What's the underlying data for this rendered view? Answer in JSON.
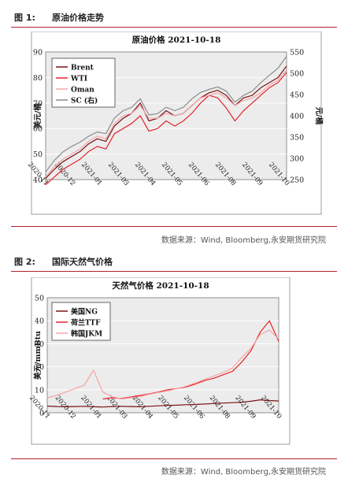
{
  "figures": [
    {
      "num": "图 1:",
      "title": "原油价格走势",
      "source": "数据来源：Wind, Bloomberg,永安期货研究院"
    },
    {
      "num": "图 2:",
      "title": "国际天然气价格",
      "source": "数据来源：Wind, Bloomberg,永安期货研究院"
    }
  ],
  "colors": {
    "accent": "#b0222a"
  },
  "chart_data": [
    {
      "type": "line",
      "title": "原油价格 2021-10-18",
      "ylabel": "美元/桶",
      "y2label": "元/桶",
      "ylim": [
        40,
        90
      ],
      "y2lim": [
        250,
        550
      ],
      "yticks": [
        40,
        50,
        60,
        70,
        80,
        90
      ],
      "y2ticks": [
        250,
        300,
        350,
        400,
        450,
        500,
        550
      ],
      "xticks": [
        "2020-11",
        "2020-12",
        "2021-01",
        "2021-03",
        "2021-04",
        "2021-05",
        "2021-06",
        "2021-08",
        "2021-09",
        "2021-10"
      ],
      "legend_position": "top-left",
      "grid": true,
      "series": [
        {
          "name": "Brent",
          "color": "#7a1214",
          "axis": "left",
          "values": [
            40.5,
            44,
            47,
            49,
            51,
            54,
            56,
            55,
            61,
            64,
            66,
            70,
            63,
            64,
            67,
            65,
            66,
            69,
            72,
            74,
            75,
            73,
            69,
            72,
            73,
            76,
            78,
            80,
            84.5
          ]
        },
        {
          "name": "WTI",
          "color": "#e6232a",
          "axis": "left",
          "values": [
            38,
            41,
            44,
            46,
            48,
            51,
            53,
            52,
            58,
            60,
            62,
            65,
            59,
            60,
            63,
            61,
            63,
            66,
            70,
            73,
            72,
            68,
            63,
            67,
            70,
            73,
            76,
            78,
            82
          ]
        },
        {
          "name": "Oman",
          "color": "#f5a6a6",
          "axis": "left",
          "values": [
            41,
            45,
            48,
            50,
            52,
            55,
            57,
            56,
            62,
            65,
            66,
            69,
            64,
            64,
            66,
            65,
            66,
            69,
            72,
            73,
            74,
            72,
            69,
            71,
            72,
            74,
            77,
            79,
            83
          ]
        },
        {
          "name": "SC (右)",
          "color": "#8c8c8c",
          "axis": "right",
          "values": [
            268,
            295,
            315,
            328,
            338,
            352,
            362,
            358,
            395,
            412,
            420,
            440,
            402,
            405,
            420,
            412,
            420,
            440,
            455,
            462,
            468,
            458,
            432,
            448,
            458,
            478,
            495,
            512,
            540
          ]
        }
      ]
    },
    {
      "type": "line",
      "title": "天然气价格 2021-10-18",
      "ylabel": "美元/mmBtu",
      "ylim": [
        0,
        50
      ],
      "yticks": [
        0,
        10,
        20,
        30,
        40,
        50
      ],
      "xticks": [
        "2020-11",
        "2020-12",
        "2021-01",
        "2021-03",
        "2021-04",
        "2021-05",
        "2021-06",
        "2021-08",
        "2021-09",
        "2021-10"
      ],
      "legend_position": "top-left",
      "grid": true,
      "series": [
        {
          "name": "美国NG",
          "color": "#7a1214",
          "values": [
            2.9,
            2.7,
            2.6,
            2.7,
            2.8,
            2.6,
            2.5,
            2.7,
            2.8,
            2.7,
            2.6,
            2.8,
            3.0,
            3.2,
            3.3,
            3.5,
            3.6,
            3.8,
            4.0,
            4.2,
            4.4,
            4.6,
            5.0,
            5.6,
            5.3,
            5.1
          ]
        },
        {
          "name": "荷兰TTF",
          "color": "#e6232a",
          "values": [
            null,
            null,
            null,
            null,
            null,
            null,
            6.0,
            6.5,
            6.2,
            6.8,
            7.5,
            8.2,
            9.0,
            10.0,
            10.5,
            11.2,
            12.5,
            14.0,
            15.0,
            16.5,
            18.0,
            22.0,
            27.0,
            35.0,
            40.0,
            31.0
          ]
        },
        {
          "name": "韩国JKM",
          "color": "#f5a6a6",
          "values": [
            6.5,
            7.5,
            9.0,
            10.5,
            12.0,
            18.5,
            9.0,
            7.0,
            6.0,
            6.5,
            7.0,
            8.0,
            8.8,
            9.5,
            10.5,
            11.5,
            13.0,
            14.5,
            16.0,
            17.5,
            19.5,
            24.0,
            28.0,
            34.0,
            36.0,
            32.0
          ]
        }
      ]
    }
  ]
}
